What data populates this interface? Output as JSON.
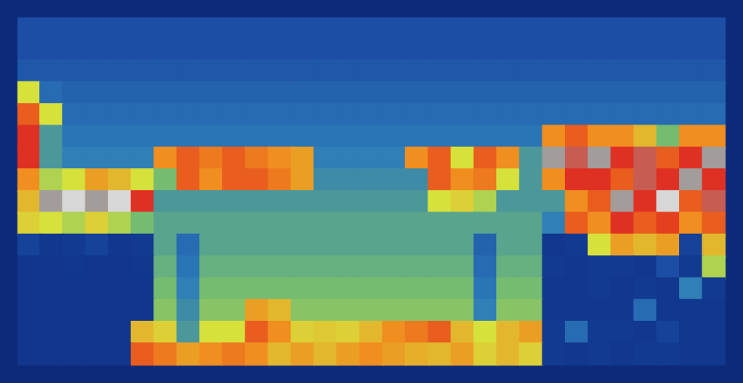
{
  "chart_data": {
    "type": "heatmap",
    "tick_labels": false,
    "grid": false,
    "clim": [
      0,
      6
    ],
    "cells": [
      [
        1.5,
        1.5,
        1.5,
        1.5,
        1.5,
        1.5,
        1.5,
        1.5,
        1.5,
        1.5,
        1.5,
        1.5,
        1.5,
        1.5,
        1.5,
        1.5,
        1.5,
        1.5,
        1.5,
        1.5,
        1.5,
        1.5,
        1.5,
        1.5,
        1.5,
        1.5,
        1.5,
        1.5,
        1.5,
        1.5,
        1.5
      ],
      [
        1.5,
        1.5,
        1.5,
        1.5,
        1.5,
        1.5,
        1.5,
        1.5,
        1.5,
        1.5,
        1.5,
        1.5,
        1.5,
        1.5,
        1.5,
        1.5,
        1.5,
        1.5,
        1.5,
        1.5,
        1.5,
        1.5,
        1.5,
        1.5,
        1.5,
        1.5,
        1.5,
        1.5,
        1.5,
        1.5,
        1.5
      ],
      [
        1.6,
        1.6,
        1.6,
        1.6,
        1.6,
        1.6,
        1.6,
        1.6,
        1.6,
        1.6,
        1.6,
        1.6,
        1.6,
        1.6,
        1.6,
        1.6,
        1.6,
        1.6,
        1.6,
        1.6,
        1.6,
        1.6,
        1.6,
        1.6,
        1.6,
        1.6,
        1.6,
        1.6,
        1.6,
        1.6,
        1.6
      ],
      [
        3,
        1.8,
        1.7,
        1.7,
        1.7,
        1.7,
        1.7,
        1.7,
        1.7,
        1.7,
        1.7,
        1.7,
        1.7,
        1.7,
        1.7,
        1.7,
        1.7,
        1.7,
        1.7,
        1.7,
        1.7,
        1.7,
        1.7,
        1.7,
        1.7,
        1.7,
        1.7,
        1.7,
        1.7,
        1.7,
        1.7
      ],
      [
        4.5,
        3,
        1.8,
        1.8,
        1.8,
        1.8,
        1.8,
        1.8,
        1.8,
        1.8,
        1.8,
        1.8,
        1.8,
        1.8,
        1.8,
        1.8,
        1.8,
        1.8,
        1.8,
        1.8,
        1.8,
        1.8,
        1.8,
        1.8,
        1.8,
        1.8,
        1.8,
        1.8,
        1.8,
        1.8,
        1.8
      ],
      [
        5,
        2.2,
        1.9,
        1.9,
        1.9,
        1.9,
        1.9,
        1.9,
        1.9,
        1.9,
        1.9,
        1.9,
        1.9,
        1.9,
        1.9,
        1.9,
        1.9,
        1.9,
        1.9,
        1.9,
        1.9,
        1.9,
        1.9,
        4,
        4.5,
        4,
        4,
        3.5,
        2.5,
        4,
        4
      ],
      [
        5,
        2.2,
        2,
        2,
        2,
        2,
        4,
        4.5,
        4.2,
        4.5,
        4.2,
        4,
        3.8,
        2,
        2,
        2,
        2,
        4,
        4.5,
        3,
        4.5,
        4,
        2.2,
        5.5,
        5.2,
        5.5,
        5,
        5.2,
        4.5,
        5,
        5.5
      ],
      [
        4,
        2.8,
        3,
        3.8,
        3.5,
        3,
        2.5,
        4.5,
        4,
        4.5,
        4.5,
        4.2,
        3.8,
        2.1,
        2.1,
        2.1,
        2.1,
        2.1,
        4.5,
        4,
        4.2,
        3,
        2.2,
        4,
        5,
        5,
        4.5,
        5.2,
        5,
        5.5,
        5
      ],
      [
        3.5,
        5.5,
        5.8,
        5.5,
        5.8,
        5,
        2.2,
        2.2,
        2.2,
        2.2,
        2.2,
        2.2,
        2.2,
        2.2,
        2.2,
        2.2,
        2.2,
        2.2,
        3,
        3.2,
        2.8,
        2.2,
        2.2,
        2.2,
        4,
        4.5,
        5.5,
        5,
        5.8,
        4.5,
        5.2
      ],
      [
        3.2,
        3,
        2.8,
        3.2,
        2.8,
        2.5,
        2.3,
        2.3,
        2.3,
        2.3,
        2.3,
        2.3,
        2.3,
        2.3,
        2.3,
        2.3,
        2.3,
        2.3,
        2.3,
        2.3,
        2.3,
        2.3,
        2.3,
        2,
        4.5,
        4,
        5,
        4.5,
        4.8,
        4,
        4.5
      ],
      [
        1.2,
        0.9,
        1,
        1.2,
        0.9,
        1,
        2.3,
        1.8,
        2.3,
        2.3,
        2.3,
        2.3,
        2.3,
        2.3,
        2.3,
        2.3,
        2.3,
        2.3,
        2.3,
        2.3,
        1.7,
        2.3,
        2.3,
        0.9,
        1,
        3,
        3.8,
        3.5,
        3.8,
        1.2,
        3.5
      ],
      [
        0.8,
        0.8,
        0.9,
        0.8,
        0.8,
        0.9,
        2.4,
        1.9,
        2.4,
        2.4,
        2.4,
        2.4,
        2.4,
        2.4,
        2.4,
        2.4,
        2.4,
        2.4,
        2.4,
        2.4,
        1.8,
        2.4,
        2.4,
        1,
        0.9,
        1,
        1,
        0.9,
        1.5,
        1,
        2.8
      ],
      [
        0.8,
        0.8,
        0.8,
        0.8,
        0.8,
        0.8,
        2.5,
        2,
        2.5,
        2.5,
        2.5,
        2.5,
        2.5,
        2.5,
        2.5,
        2.5,
        2.5,
        2.5,
        2.5,
        2.5,
        1.9,
        2.5,
        2.5,
        0.9,
        0.9,
        1,
        0.9,
        1,
        0.9,
        2,
        1
      ],
      [
        0.8,
        0.8,
        0.8,
        0.8,
        0.8,
        0.8,
        2.6,
        2.1,
        2.6,
        2.6,
        3.8,
        3.5,
        2.6,
        2.6,
        2.6,
        2.6,
        2.6,
        2.6,
        2.6,
        2.6,
        2,
        2.6,
        2.6,
        0.9,
        0.9,
        0.9,
        0.9,
        1.8,
        0.9,
        0.9,
        0.9
      ],
      [
        0.8,
        0.8,
        0.8,
        0.8,
        0.8,
        3.5,
        3.2,
        2.2,
        3,
        3,
        4.5,
        4,
        3.2,
        3.3,
        3.2,
        3.5,
        4,
        4.2,
        4.5,
        3.5,
        3,
        3.5,
        3.8,
        1,
        1.8,
        1,
        1,
        0.9,
        1.2,
        0.9,
        0.9
      ],
      [
        0.8,
        0.8,
        0.8,
        0.8,
        0.8,
        4.5,
        4.2,
        3.8,
        4,
        4.2,
        4,
        3.5,
        3.8,
        3.5,
        3.8,
        4,
        3.8,
        3.6,
        3.5,
        3.8,
        3.2,
        3.5,
        3.2,
        1,
        0.9,
        1,
        0.9,
        1,
        1,
        0.9,
        0.9
      ]
    ]
  }
}
